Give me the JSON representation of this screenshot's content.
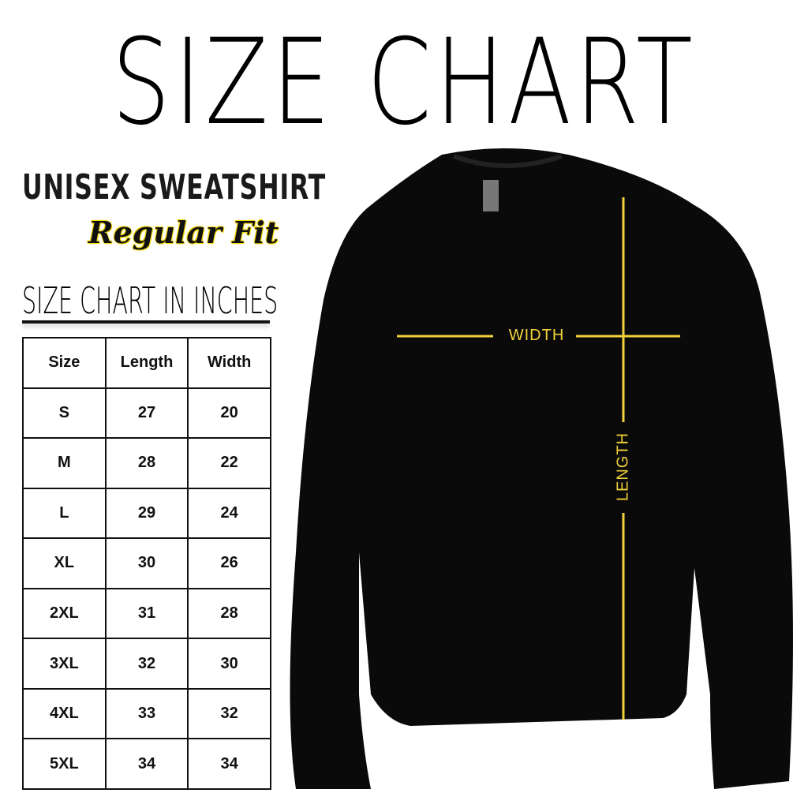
{
  "title": "SIZE CHART",
  "product": "UNISEX SWEATSHIRT",
  "fit": "Regular Fit",
  "table_title": "SIZE CHART IN INCHES",
  "table": {
    "headers": [
      "Size",
      "Length",
      "Width"
    ],
    "rows": [
      [
        "S",
        "27",
        "20"
      ],
      [
        "M",
        "28",
        "22"
      ],
      [
        "L",
        "29",
        "24"
      ],
      [
        "XL",
        "30",
        "26"
      ],
      [
        "2XL",
        "31",
        "28"
      ],
      [
        "3XL",
        "32",
        "30"
      ],
      [
        "4XL",
        "33",
        "32"
      ],
      [
        "5XL",
        "34",
        "34"
      ]
    ]
  },
  "diagram": {
    "width_label": "WIDTH",
    "length_label": "LENGTH",
    "line_color": "#f2d23a",
    "garment_color": "#0a0a0a"
  }
}
